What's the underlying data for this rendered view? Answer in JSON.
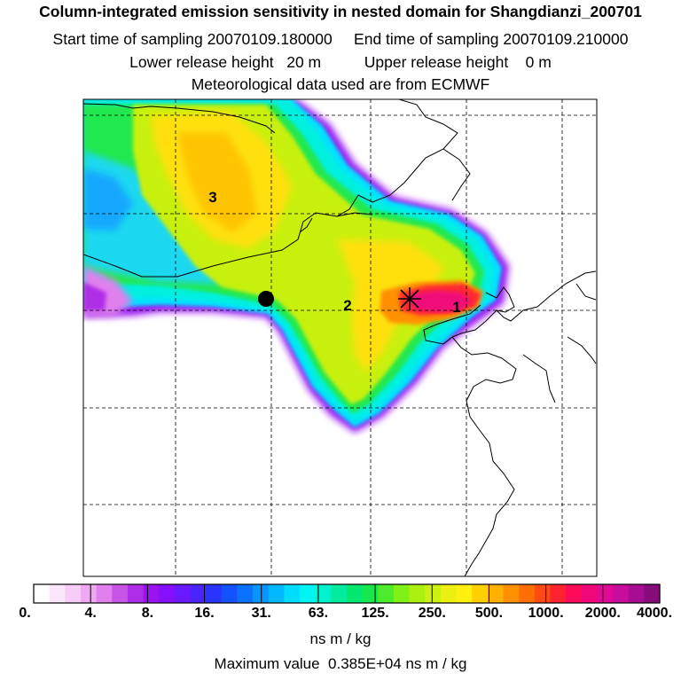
{
  "header": {
    "title": "Column-integrated emission sensitivity in nested domain for Shangdianzi_200701",
    "sampling_line": "Start time of sampling 20070109.180000     End time of sampling 20070109.210000",
    "release_line": "Lower release height   20 m          Upper release height    0 m",
    "met_line": "Meteorological data used are from ECMWF"
  },
  "map": {
    "region_labels": [
      "3",
      "2",
      "1"
    ],
    "markers": [
      "receptor-star",
      "source-dot"
    ]
  },
  "colorbar": {
    "tick_labels": [
      "0.",
      "4.",
      "8.",
      "16.",
      "31.",
      "63.",
      "125.",
      "250.",
      "500.",
      "1000.",
      "2000.",
      "4000."
    ],
    "colors": [
      "#ffffff",
      "#fce6fc",
      "#f8ccf8",
      "#f0a8f4",
      "#e080ec",
      "#c855e6",
      "#ae2ee8",
      "#9a14f2",
      "#8410ff",
      "#6a18ff",
      "#4a24ff",
      "#2a34ff",
      "#1452ff",
      "#0a72ff",
      "#0a94ff",
      "#00b8ff",
      "#00dcff",
      "#00f4f4",
      "#00f2cc",
      "#00ec9c",
      "#00e870",
      "#18e84c",
      "#4cec2c",
      "#80f018",
      "#acf010",
      "#cef010",
      "#ecf010",
      "#fff010",
      "#ffd000",
      "#ffb000",
      "#ff9000",
      "#ff6e00",
      "#ff4a14",
      "#ff2230",
      "#ff0a58",
      "#f0087a",
      "#e00a96",
      "#c80c9c",
      "#a80c90",
      "#860c7a"
    ],
    "units": "ns m / kg"
  },
  "max_value_line": "Maximum value  0.385E+04 ns m / kg"
}
